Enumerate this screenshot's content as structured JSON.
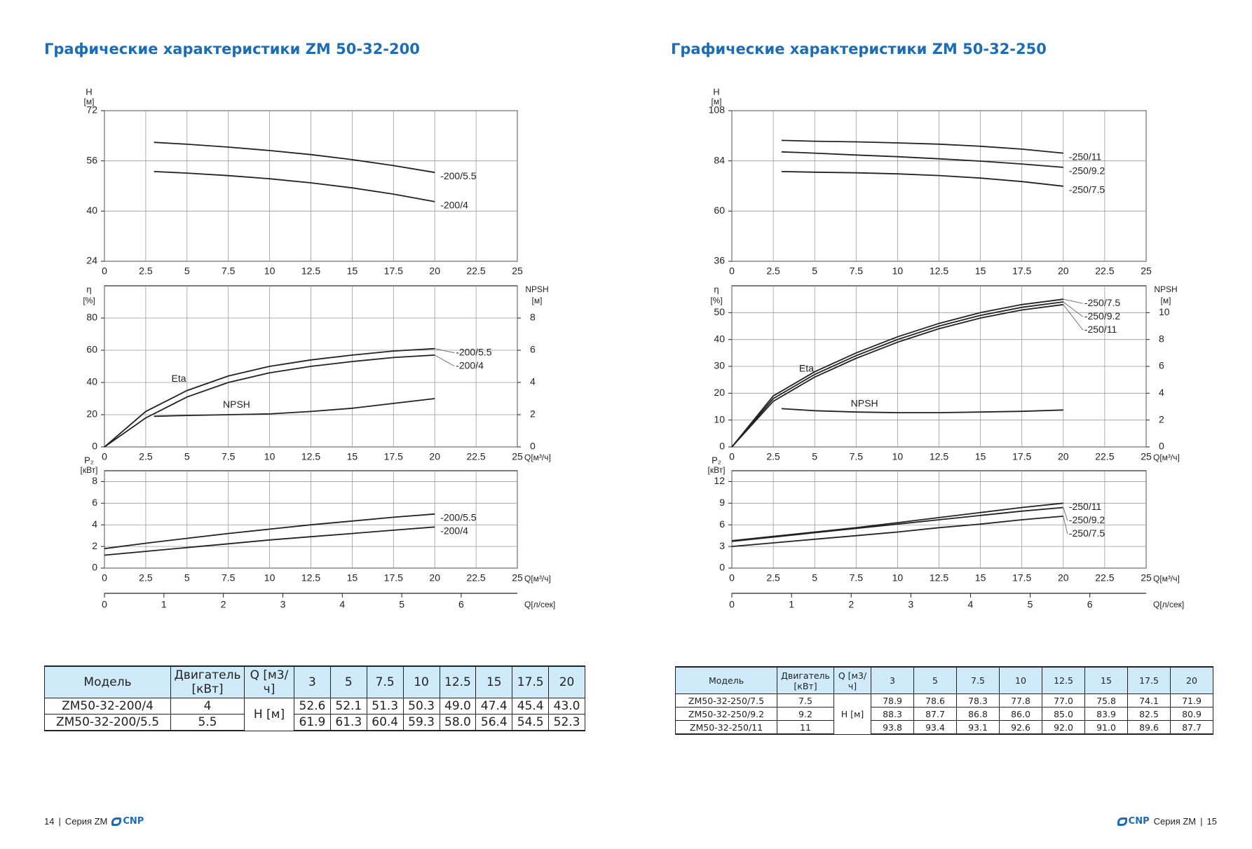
{
  "pages": [
    {
      "title": "Графические характеристики ZM 50-32-200",
      "table": {
        "headers": [
          "Модель",
          "Двигатель [кВт]",
          "Q [м3/ч]",
          "3",
          "5",
          "7.5",
          "10",
          "12.5",
          "15",
          "17.5",
          "20"
        ],
        "h_label": "H [м]",
        "rows": [
          [
            "ZM50-32-200/4",
            "4",
            "52.6",
            "52.1",
            "51.3",
            "50.3",
            "49.0",
            "47.4",
            "45.4",
            "43.0"
          ],
          [
            "ZM50-32-200/5.5",
            "5.5",
            "61.9",
            "61.3",
            "60.4",
            "59.3",
            "58.0",
            "56.4",
            "54.5",
            "52.3"
          ]
        ]
      },
      "footer": {
        "number": "14",
        "series": "Серия ZM",
        "logo": "CNP"
      }
    },
    {
      "title": "Графические характеристики ZM 50-32-250",
      "table": {
        "headers": [
          "Модель",
          "Двигатель [кВт]",
          "Q [м3/ч]",
          "3",
          "5",
          "7.5",
          "10",
          "12.5",
          "15",
          "17.5",
          "20"
        ],
        "h_label": "H [м]",
        "rows": [
          [
            "ZM50-32-250/7.5",
            "7.5",
            "78.9",
            "78.6",
            "78.3",
            "77.8",
            "77.0",
            "75.8",
            "74.1",
            "71.9"
          ],
          [
            "ZM50-32-250/9.2",
            "9.2",
            "88.3",
            "87.7",
            "86.8",
            "86.0",
            "85.0",
            "83.9",
            "82.5",
            "80.9"
          ],
          [
            "ZM50-32-250/11",
            "11",
            "93.8",
            "93.4",
            "93.1",
            "92.6",
            "92.0",
            "91.0",
            "89.6",
            "87.7"
          ]
        ]
      },
      "footer": {
        "number": "15",
        "series": "Серия ZM",
        "logo": "CNP"
      }
    }
  ],
  "chart_data": [
    {
      "type": "line",
      "y_label": "H",
      "y_unit": "[м]",
      "grid": true,
      "xlim": [
        0,
        25
      ],
      "xticks": [
        0,
        2.5,
        5,
        7.5,
        10,
        12.5,
        15,
        17.5,
        20,
        22.5,
        25
      ],
      "ylim": [
        24,
        72
      ],
      "yticks": [
        24,
        40,
        56,
        72
      ],
      "series": [
        {
          "name": "-200/5.5",
          "color": "#222222",
          "x": [
            3,
            5,
            7.5,
            10,
            12.5,
            15,
            17.5,
            20
          ],
          "values": [
            61.9,
            61.3,
            60.4,
            59.3,
            58.0,
            56.4,
            54.5,
            52.3
          ]
        },
        {
          "name": "-200/4",
          "color": "#222222",
          "x": [
            3,
            5,
            7.5,
            10,
            12.5,
            15,
            17.5,
            20
          ],
          "values": [
            52.6,
            52.1,
            51.3,
            50.3,
            49.0,
            47.4,
            45.4,
            43.0
          ]
        }
      ]
    },
    {
      "type": "line",
      "y_label": "η",
      "y_unit": "[%]",
      "y2_label": "NPSH",
      "y2_unit": "[м]",
      "x_label": "Q[м³/ч]",
      "grid": true,
      "annotations": [
        "Eta",
        "NPSH"
      ],
      "xlim": [
        0,
        25
      ],
      "xticks": [
        0,
        2.5,
        5,
        7.5,
        10,
        12.5,
        15,
        17.5,
        20,
        22.5,
        25
      ],
      "ylim": [
        0,
        100
      ],
      "yticks": [
        0,
        20,
        40,
        60,
        80
      ],
      "y2lim": [
        0,
        10
      ],
      "y2ticks": [
        0,
        2,
        4,
        6,
        8
      ],
      "series": [
        {
          "name": "-200/5.5",
          "color": "#222222",
          "x": [
            0,
            2.5,
            5,
            7.5,
            10,
            12.5,
            15,
            17.5,
            20
          ],
          "values": [
            0,
            22,
            35,
            44,
            50,
            54,
            57,
            59.5,
            61
          ]
        },
        {
          "name": "-200/4",
          "color": "#222222",
          "x": [
            0,
            2.5,
            5,
            7.5,
            10,
            12.5,
            15,
            17.5,
            20
          ],
          "values": [
            0,
            18,
            31,
            40,
            46,
            50,
            53,
            55.5,
            57
          ]
        },
        {
          "name": "NPSH",
          "color": "#222222",
          "axis": "y2",
          "x": [
            3,
            5,
            7.5,
            10,
            12.5,
            15,
            17.5,
            20
          ],
          "values": [
            1.9,
            1.95,
            2.0,
            2.05,
            2.2,
            2.4,
            2.7,
            3.0
          ]
        }
      ]
    },
    {
      "type": "line",
      "y_label": "P₂",
      "y_unit": "[кВт]",
      "x_label": "Q[м³/ч]",
      "x2_label": "Q[л/сек]",
      "grid": true,
      "xlim": [
        0,
        25
      ],
      "xticks": [
        0,
        2.5,
        5,
        7.5,
        10,
        12.5,
        15,
        17.5,
        20,
        22.5,
        25
      ],
      "x2lim": [
        0,
        6.944
      ],
      "x2ticks": [
        0,
        1,
        2,
        3,
        4,
        5,
        6
      ],
      "ylim": [
        0,
        9
      ],
      "yticks": [
        0,
        2,
        4,
        6,
        8
      ],
      "series": [
        {
          "name": "-200/5.5",
          "color": "#222222",
          "x": [
            0,
            2.5,
            5,
            7.5,
            10,
            12.5,
            15,
            17.5,
            20
          ],
          "values": [
            1.8,
            2.3,
            2.75,
            3.2,
            3.6,
            4.0,
            4.35,
            4.7,
            5.0
          ]
        },
        {
          "name": "-200/4",
          "color": "#222222",
          "x": [
            0,
            2.5,
            5,
            7.5,
            10,
            12.5,
            15,
            17.5,
            20
          ],
          "values": [
            1.2,
            1.55,
            1.9,
            2.25,
            2.6,
            2.9,
            3.2,
            3.5,
            3.8
          ]
        }
      ]
    },
    {
      "type": "line",
      "y_label": "H",
      "y_unit": "[м]",
      "grid": true,
      "xlim": [
        0,
        25
      ],
      "xticks": [
        0,
        2.5,
        5,
        7.5,
        10,
        12.5,
        15,
        17.5,
        20,
        22.5,
        25
      ],
      "ylim": [
        36,
        108
      ],
      "yticks": [
        36,
        60,
        84,
        108
      ],
      "series": [
        {
          "name": "-250/11",
          "color": "#222222",
          "x": [
            3,
            5,
            7.5,
            10,
            12.5,
            15,
            17.5,
            20
          ],
          "values": [
            93.8,
            93.4,
            93.1,
            92.6,
            92.0,
            91.0,
            89.6,
            87.7
          ]
        },
        {
          "name": "-250/9.2",
          "color": "#222222",
          "x": [
            3,
            5,
            7.5,
            10,
            12.5,
            15,
            17.5,
            20
          ],
          "values": [
            88.3,
            87.7,
            86.8,
            86.0,
            85.0,
            83.9,
            82.5,
            80.9
          ]
        },
        {
          "name": "-250/7.5",
          "color": "#222222",
          "x": [
            3,
            5,
            7.5,
            10,
            12.5,
            15,
            17.5,
            20
          ],
          "values": [
            78.9,
            78.6,
            78.3,
            77.8,
            77.0,
            75.8,
            74.1,
            71.9
          ]
        }
      ]
    },
    {
      "type": "line",
      "y_label": "η",
      "y_unit": "[%]",
      "y2_label": "NPSH",
      "y2_unit": "[м]",
      "x_label": "Q[м³/ч]",
      "grid": true,
      "annotations": [
        "Eta",
        "NPSH"
      ],
      "xlim": [
        0,
        25
      ],
      "xticks": [
        0,
        2.5,
        5,
        7.5,
        10,
        12.5,
        15,
        17.5,
        20,
        22.5,
        25
      ],
      "ylim": [
        0,
        60
      ],
      "yticks": [
        0,
        10,
        20,
        30,
        40,
        50
      ],
      "y2lim": [
        0,
        12
      ],
      "y2ticks": [
        0,
        2,
        4,
        6,
        8,
        10
      ],
      "series": [
        {
          "name": "-250/7.5",
          "color": "#222222",
          "x": [
            0,
            2.5,
            5,
            7.5,
            10,
            12.5,
            15,
            17.5,
            20
          ],
          "values": [
            0,
            19,
            28,
            35,
            41,
            46,
            50,
            53,
            55
          ]
        },
        {
          "name": "-250/9.2",
          "color": "#222222",
          "x": [
            0,
            2.5,
            5,
            7.5,
            10,
            12.5,
            15,
            17.5,
            20
          ],
          "values": [
            0,
            18,
            27,
            34,
            40,
            45,
            49,
            52,
            54
          ]
        },
        {
          "name": "-250/11",
          "color": "#222222",
          "x": [
            0,
            2.5,
            5,
            7.5,
            10,
            12.5,
            15,
            17.5,
            20
          ],
          "values": [
            0,
            17,
            26,
            33,
            39,
            44,
            48,
            51,
            53
          ]
        },
        {
          "name": "NPSH",
          "color": "#222222",
          "axis": "y2",
          "x": [
            3,
            5,
            7.5,
            10,
            12.5,
            15,
            17.5,
            20
          ],
          "values": [
            2.85,
            2.7,
            2.6,
            2.55,
            2.55,
            2.6,
            2.65,
            2.75
          ]
        }
      ]
    },
    {
      "type": "line",
      "y_label": "P₂",
      "y_unit": "[кВт]",
      "x_label": "Q[м³/ч]",
      "x2_label": "Q[л/сек]",
      "grid": true,
      "xlim": [
        0,
        25
      ],
      "xticks": [
        0,
        2.5,
        5,
        7.5,
        10,
        12.5,
        15,
        17.5,
        20,
        22.5,
        25
      ],
      "x2lim": [
        0,
        6.944
      ],
      "x2ticks": [
        0,
        1,
        2,
        3,
        4,
        5,
        6
      ],
      "ylim": [
        0,
        13.5
      ],
      "yticks": [
        0,
        3,
        6,
        9,
        12
      ],
      "series": [
        {
          "name": "-250/11",
          "color": "#222222",
          "x": [
            0,
            2.5,
            5,
            7.5,
            10,
            12.5,
            15,
            17.5,
            20
          ],
          "values": [
            3.8,
            4.4,
            5.0,
            5.6,
            6.3,
            7.0,
            7.7,
            8.4,
            9.0
          ]
        },
        {
          "name": "-250/9.2",
          "color": "#222222",
          "x": [
            0,
            2.5,
            5,
            7.5,
            10,
            12.5,
            15,
            17.5,
            20
          ],
          "values": [
            3.7,
            4.3,
            4.9,
            5.5,
            6.1,
            6.7,
            7.3,
            7.9,
            8.4
          ]
        },
        {
          "name": "-250/7.5",
          "color": "#222222",
          "x": [
            0,
            2.5,
            5,
            7.5,
            10,
            12.5,
            15,
            17.5,
            20
          ],
          "values": [
            3.0,
            3.5,
            4.0,
            4.5,
            5.0,
            5.6,
            6.1,
            6.7,
            7.2
          ]
        }
      ]
    }
  ]
}
